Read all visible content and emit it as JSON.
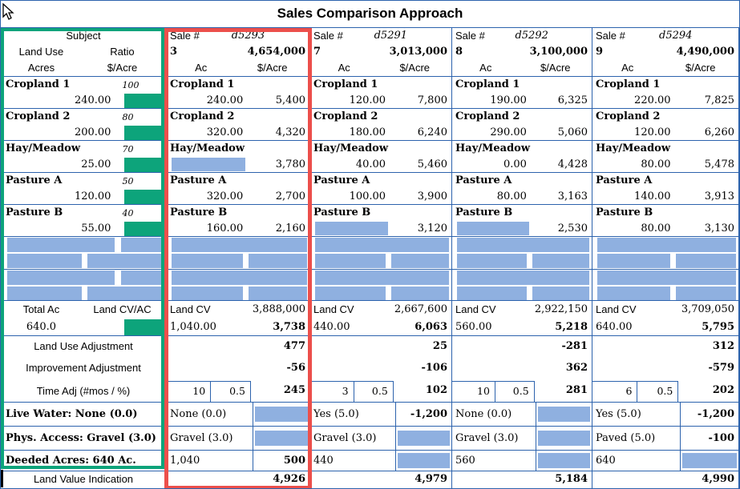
{
  "title": "Sales Comparison Approach",
  "colors": {
    "grid_blue": "#2d63ad",
    "redaction_bar_blue": "#8fb0e0",
    "subject_highlight_green": "#0da47b",
    "sale_highlight_red": "#ec4f4b"
  },
  "subject": {
    "header_title": "Subject",
    "col1_header": "Land Use",
    "col2_header": "Ratio",
    "col1_subheader": "Acres",
    "col2_subheader": "$/Acre",
    "land_uses": [
      {
        "label": "Cropland 1",
        "ratio": "100",
        "acres": "240.00"
      },
      {
        "label": "Cropland 2",
        "ratio": "80",
        "acres": "200.00"
      },
      {
        "label": "Hay/Meadow",
        "ratio": "70",
        "acres": "25.00"
      },
      {
        "label": "Pasture A",
        "ratio": "50",
        "acres": "120.00"
      },
      {
        "label": "Pasture B",
        "ratio": "40",
        "acres": "55.00"
      }
    ],
    "total_acres_label": "Total Ac",
    "land_cv_per_acre_label": "Land CV/AC",
    "total_acres": "640.0",
    "land_use_adjustment_label": "Land Use Adjustment",
    "improvement_adjustment_label": "Improvement Adjustment",
    "time_adjustment_label": "Time Adj (#mos / %)",
    "live_water_label": "Live Water:  None (0.0)",
    "physical_access_label": "Phys. Access: Gravel (3.0)",
    "deeded_acres_label": "Deeded Acres:  640 Ac.",
    "land_value_indication_label": "Land Value Indication"
  },
  "sales": [
    {
      "sale_label": "Sale #",
      "sale_name": "d5293",
      "sale_number": "3",
      "sale_price": "4,654,000",
      "acres_header": "Ac",
      "per_acre_header": "$/Acre",
      "land_uses": [
        {
          "label": "Cropland 1",
          "acres": "240.00",
          "acres_redacted": false,
          "per_acre": "5,400"
        },
        {
          "label": "Cropland 2",
          "acres": "320.00",
          "acres_redacted": false,
          "per_acre": "4,320"
        },
        {
          "label": "Hay/Meadow",
          "acres": "",
          "acres_redacted": true,
          "per_acre": "3,780"
        },
        {
          "label": "Pasture A",
          "acres": "320.00",
          "acres_redacted": false,
          "per_acre": "2,700"
        },
        {
          "label": "Pasture B",
          "acres": "160.00",
          "acres_redacted": false,
          "per_acre": "2,160"
        }
      ],
      "land_cv_label": "Land CV",
      "land_cv": "3,888,000",
      "total_acres": "1,040.00",
      "cv_per_acre": "3,738",
      "land_use_adjustment": "477",
      "improvement_adjustment": "-56",
      "time_adjustment": {
        "months": "10",
        "percent": "0.5",
        "value": "245"
      },
      "live_water": {
        "label": "None (0.0)",
        "value": "",
        "value_redacted": true
      },
      "physical_access": {
        "label": "Gravel (3.0)",
        "value": "",
        "value_redacted": true
      },
      "deeded_acres": {
        "label": "1,040",
        "value": "500",
        "value_redacted": false
      },
      "land_value_indication": "4,926"
    },
    {
      "sale_label": "Sale #",
      "sale_name": "d5291",
      "sale_number": "7",
      "sale_price": "3,013,000",
      "acres_header": "Ac",
      "per_acre_header": "$/Acre",
      "land_uses": [
        {
          "label": "Cropland 1",
          "acres": "120.00",
          "acres_redacted": false,
          "per_acre": "7,800"
        },
        {
          "label": "Cropland 2",
          "acres": "180.00",
          "acres_redacted": false,
          "per_acre": "6,240"
        },
        {
          "label": "Hay/Meadow",
          "acres": "40.00",
          "acres_redacted": false,
          "per_acre": "5,460"
        },
        {
          "label": "Pasture A",
          "acres": "100.00",
          "acres_redacted": false,
          "per_acre": "3,900"
        },
        {
          "label": "Pasture B",
          "acres": "",
          "acres_redacted": true,
          "per_acre": "3,120"
        }
      ],
      "land_cv_label": "Land CV",
      "land_cv": "2,667,600",
      "total_acres": "440.00",
      "cv_per_acre": "6,063",
      "land_use_adjustment": "25",
      "improvement_adjustment": "-106",
      "time_adjustment": {
        "months": "3",
        "percent": "0.5",
        "value": "102"
      },
      "live_water": {
        "label": "Yes (5.0)",
        "value": "-1,200",
        "value_redacted": false
      },
      "physical_access": {
        "label": "Gravel (3.0)",
        "value": "",
        "value_redacted": true
      },
      "deeded_acres": {
        "label": "440",
        "value": "",
        "value_redacted": true
      },
      "land_value_indication": "4,979"
    },
    {
      "sale_label": "Sale #",
      "sale_name": "d5292",
      "sale_number": "8",
      "sale_price": "3,100,000",
      "acres_header": "Ac",
      "per_acre_header": "$/Acre",
      "land_uses": [
        {
          "label": "Cropland 1",
          "acres": "190.00",
          "acres_redacted": false,
          "per_acre": "6,325"
        },
        {
          "label": "Cropland 2",
          "acres": "290.00",
          "acres_redacted": false,
          "per_acre": "5,060"
        },
        {
          "label": "Hay/Meadow",
          "acres": "0.00",
          "acres_redacted": false,
          "per_acre": "4,428"
        },
        {
          "label": "Pasture A",
          "acres": "80.00",
          "acres_redacted": false,
          "per_acre": "3,163"
        },
        {
          "label": "Pasture B",
          "acres": "",
          "acres_redacted": true,
          "per_acre": "2,530"
        }
      ],
      "land_cv_label": "Land CV",
      "land_cv": "2,922,150",
      "total_acres": "560.00",
      "cv_per_acre": "5,218",
      "land_use_adjustment": "-281",
      "improvement_adjustment": "362",
      "time_adjustment": {
        "months": "10",
        "percent": "0.5",
        "value": "281"
      },
      "live_water": {
        "label": "None (0.0)",
        "value": "",
        "value_redacted": true
      },
      "physical_access": {
        "label": "Gravel (3.0)",
        "value": "",
        "value_redacted": true
      },
      "deeded_acres": {
        "label": "560",
        "value": "",
        "value_redacted": true
      },
      "land_value_indication": "5,184"
    },
    {
      "sale_label": "Sale #",
      "sale_name": "d5294",
      "sale_number": "9",
      "sale_price": "4,490,000",
      "acres_header": "Ac",
      "per_acre_header": "$/Acre",
      "land_uses": [
        {
          "label": "Cropland 1",
          "acres": "220.00",
          "acres_redacted": false,
          "per_acre": "7,825"
        },
        {
          "label": "Cropland 2",
          "acres": "120.00",
          "acres_redacted": false,
          "per_acre": "6,260"
        },
        {
          "label": "Hay/Meadow",
          "acres": "80.00",
          "acres_redacted": false,
          "per_acre": "5,478"
        },
        {
          "label": "Pasture A",
          "acres": "140.00",
          "acres_redacted": false,
          "per_acre": "3,913"
        },
        {
          "label": "Pasture B",
          "acres": "80.00",
          "acres_redacted": false,
          "per_acre": "3,130"
        }
      ],
      "land_cv_label": "Land CV",
      "land_cv": "3,709,050",
      "total_acres": "640.00",
      "cv_per_acre": "5,795",
      "land_use_adjustment": "312",
      "improvement_adjustment": "-579",
      "time_adjustment": {
        "months": "6",
        "percent": "0.5",
        "value": "202"
      },
      "live_water": {
        "label": "Yes (5.0)",
        "value": "-1,200",
        "value_redacted": false
      },
      "physical_access": {
        "label": "Paved (5.0)",
        "value": "-100",
        "value_redacted": false
      },
      "deeded_acres": {
        "label": "640",
        "value": "",
        "value_redacted": true
      },
      "land_value_indication": "4,990"
    }
  ]
}
